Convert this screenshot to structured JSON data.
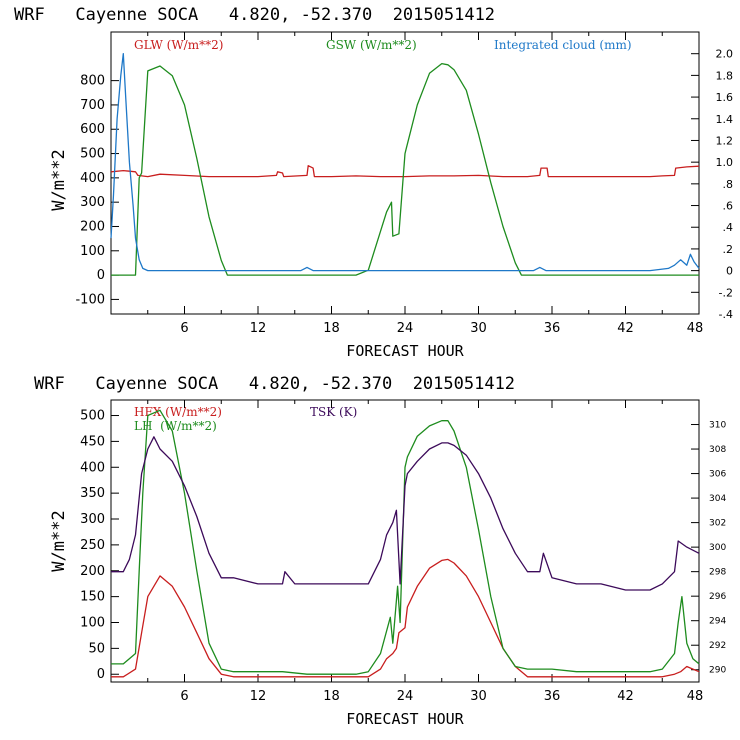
{
  "chart_data": [
    {
      "type": "line",
      "title": "WRF   Cayenne SOCA   4.820, -52.370  2015051412",
      "xlabel": "FORECAST HOUR",
      "ylabel": "W/m**2",
      "xlim": [
        0,
        48
      ],
      "ylim": [
        -160,
        1000
      ],
      "x_ticks": [
        6,
        12,
        18,
        24,
        30,
        36,
        42,
        48
      ],
      "y_ticks": [
        -100,
        0,
        100,
        200,
        300,
        400,
        500,
        600,
        700,
        800
      ],
      "y2lim": [
        -0.4,
        2.2
      ],
      "y2_tick_labels": [
        "2.0",
        "1.8",
        "1.6",
        "1.4",
        "1.2",
        "1.0",
        ".8",
        ".6",
        ".4",
        ".2",
        "0",
        "-.2",
        "-.4"
      ],
      "legend": [
        {
          "label": "GLW (W/m**2)",
          "color": "#c81e1e"
        },
        {
          "label": "GSW (W/m**2)",
          "color": "#1e8c1e"
        },
        {
          "label": "Integrated cloud (mm)",
          "color": "#1e78c8"
        }
      ],
      "series": [
        {
          "name": "GLW (W/m**2)",
          "color": "#c81e1e",
          "axis": "left",
          "x": [
            0,
            1,
            2,
            2.2,
            3,
            4,
            6,
            8,
            10,
            12,
            13.5,
            13.6,
            14,
            14.1,
            16,
            16.1,
            16.5,
            16.6,
            18,
            20,
            22,
            24,
            26,
            28,
            30,
            32,
            34,
            35,
            35.1,
            35.6,
            35.7,
            38,
            40,
            42,
            44,
            45,
            46,
            46.1,
            47,
            48
          ],
          "y": [
            425,
            430,
            425,
            410,
            405,
            415,
            410,
            405,
            405,
            405,
            410,
            425,
            420,
            405,
            410,
            450,
            440,
            405,
            405,
            408,
            405,
            405,
            408,
            408,
            410,
            405,
            405,
            410,
            440,
            440,
            405,
            405,
            405,
            405,
            405,
            408,
            410,
            440,
            445,
            448
          ]
        },
        {
          "name": "GSW (W/m**2)",
          "color": "#1e8c1e",
          "axis": "left",
          "x": [
            0,
            2,
            2.3,
            2.5,
            3,
            4,
            5,
            6,
            7,
            8,
            9,
            9.5,
            10,
            12,
            14,
            16,
            18,
            20,
            21,
            22,
            22.5,
            22.9,
            23,
            23.5,
            24,
            24.1,
            25,
            26,
            27,
            27.5,
            28,
            29,
            30,
            31,
            32,
            33,
            33.5,
            34,
            36,
            38,
            40,
            42,
            44,
            46,
            48
          ],
          "y": [
            0,
            0,
            400,
            420,
            840,
            860,
            820,
            700,
            480,
            240,
            60,
            0,
            0,
            0,
            0,
            0,
            0,
            0,
            20,
            180,
            260,
            300,
            160,
            170,
            500,
            520,
            700,
            830,
            870,
            865,
            845,
            760,
            580,
            380,
            200,
            50,
            0,
            0,
            0,
            0,
            0,
            0,
            0,
            0,
            0
          ]
        },
        {
          "name": "Integrated cloud (mm)",
          "color": "#1e78c8",
          "axis": "right",
          "x": [
            0,
            0.2,
            0.5,
            0.8,
            1.0,
            1.2,
            1.5,
            1.8,
            2.0,
            2.3,
            2.6,
            3,
            6,
            12,
            15.5,
            16,
            16.5,
            18,
            24,
            30,
            34.5,
            35,
            35.5,
            40,
            44,
            45.5,
            46,
            46.5,
            47,
            47.3,
            47.6,
            48
          ],
          "y": [
            0.3,
            0.7,
            1.4,
            1.8,
            2.0,
            1.6,
            1.0,
            0.6,
            0.3,
            0.1,
            0.02,
            0.0,
            0.0,
            0.0,
            0.0,
            0.03,
            0.0,
            0.0,
            0.0,
            0.0,
            0.0,
            0.03,
            0.0,
            0.0,
            0.0,
            0.02,
            0.05,
            0.1,
            0.05,
            0.15,
            0.08,
            0.02
          ]
        }
      ]
    },
    {
      "type": "line",
      "title": "WRF   Cayenne SOCA   4.820, -52.370  2015051412",
      "xlabel": "FORECAST HOUR",
      "ylabel": "W/m**2",
      "xlim": [
        0,
        48
      ],
      "ylim": [
        -15,
        530
      ],
      "x_ticks": [
        6,
        12,
        18,
        24,
        30,
        36,
        42,
        48
      ],
      "y_ticks": [
        0,
        50,
        100,
        150,
        200,
        250,
        300,
        350,
        400,
        450,
        500
      ],
      "y2lim": [
        289,
        312
      ],
      "y2_ticks": [
        290,
        292,
        294,
        296,
        298,
        300,
        302,
        304,
        306,
        308,
        310
      ],
      "legend": [
        {
          "label": "HFX (W/m**2)",
          "color": "#c81e1e"
        },
        {
          "label": "LH  (W/m**2)",
          "color": "#1e8c1e"
        },
        {
          "label": "TSK (K)",
          "color": "#3c0a5a"
        }
      ],
      "series": [
        {
          "name": "HFX (W/m**2)",
          "color": "#c81e1e",
          "axis": "left",
          "x": [
            0,
            1,
            2,
            2.5,
            3,
            4,
            5,
            6,
            7,
            8,
            9,
            10,
            12,
            14,
            16,
            18,
            20,
            21,
            22,
            22.5,
            23,
            23.3,
            23.5,
            24,
            24.2,
            25,
            26,
            27,
            27.5,
            28,
            29,
            30,
            31,
            32,
            33,
            34,
            36,
            38,
            40,
            42,
            44,
            45,
            46,
            46.5,
            47,
            47.5,
            48
          ],
          "y": [
            -5,
            -5,
            10,
            80,
            150,
            190,
            170,
            130,
            80,
            30,
            0,
            -5,
            -5,
            -5,
            -5,
            -5,
            -5,
            -5,
            10,
            30,
            40,
            50,
            80,
            90,
            130,
            170,
            205,
            220,
            222,
            215,
            190,
            150,
            100,
            50,
            15,
            -5,
            -5,
            -5,
            -5,
            -5,
            -5,
            -5,
            0,
            5,
            15,
            10,
            5
          ]
        },
        {
          "name": "LH  (W/m**2)",
          "color": "#1e8c1e",
          "axis": "left",
          "x": [
            0,
            1,
            2,
            2.3,
            2.6,
            3,
            4,
            5,
            6,
            7,
            8,
            9,
            10,
            12,
            14,
            16,
            18,
            20,
            21,
            22,
            22.8,
            23,
            23.4,
            23.6,
            24,
            24.2,
            25,
            26,
            27,
            27.5,
            28,
            29,
            30,
            31,
            32,
            33,
            34,
            36,
            38,
            40,
            42,
            44,
            45,
            46,
            46.3,
            46.6,
            47,
            47.5,
            48
          ],
          "y": [
            20,
            20,
            40,
            200,
            350,
            500,
            510,
            470,
            350,
            200,
            60,
            10,
            5,
            5,
            5,
            0,
            0,
            0,
            5,
            40,
            110,
            60,
            170,
            100,
            400,
            420,
            460,
            480,
            490,
            490,
            470,
            400,
            280,
            150,
            50,
            15,
            10,
            10,
            5,
            5,
            5,
            5,
            10,
            40,
            100,
            150,
            60,
            30,
            20
          ]
        },
        {
          "name": "TSK (K)",
          "color": "#3c0a5a",
          "axis": "right",
          "x": [
            0,
            1,
            1.5,
            2,
            2.5,
            3,
            3.5,
            4,
            5,
            6,
            7,
            8,
            9,
            10,
            12,
            14,
            14.2,
            15,
            16,
            17,
            18,
            20,
            21,
            22,
            22.5,
            23,
            23.3,
            23.6,
            24,
            24.2,
            25,
            26,
            27,
            27.5,
            28,
            29,
            30,
            31,
            32,
            33,
            34,
            35,
            35.3,
            36,
            38,
            40,
            42,
            44,
            45,
            46,
            46.3,
            47,
            48
          ],
          "y": [
            298,
            298,
            299,
            301,
            306,
            308,
            309,
            308,
            307,
            305,
            302.5,
            299.5,
            297.5,
            297.5,
            297,
            297,
            298,
            297,
            297,
            297,
            297,
            297,
            297,
            299,
            301,
            302,
            303,
            297,
            305,
            306,
            307,
            308,
            308.5,
            308.5,
            308.3,
            307.5,
            306,
            304,
            301.5,
            299.5,
            298,
            298,
            299.5,
            297.5,
            297,
            297,
            296.5,
            296.5,
            297,
            298,
            300.5,
            300,
            299.5
          ]
        }
      ]
    }
  ]
}
